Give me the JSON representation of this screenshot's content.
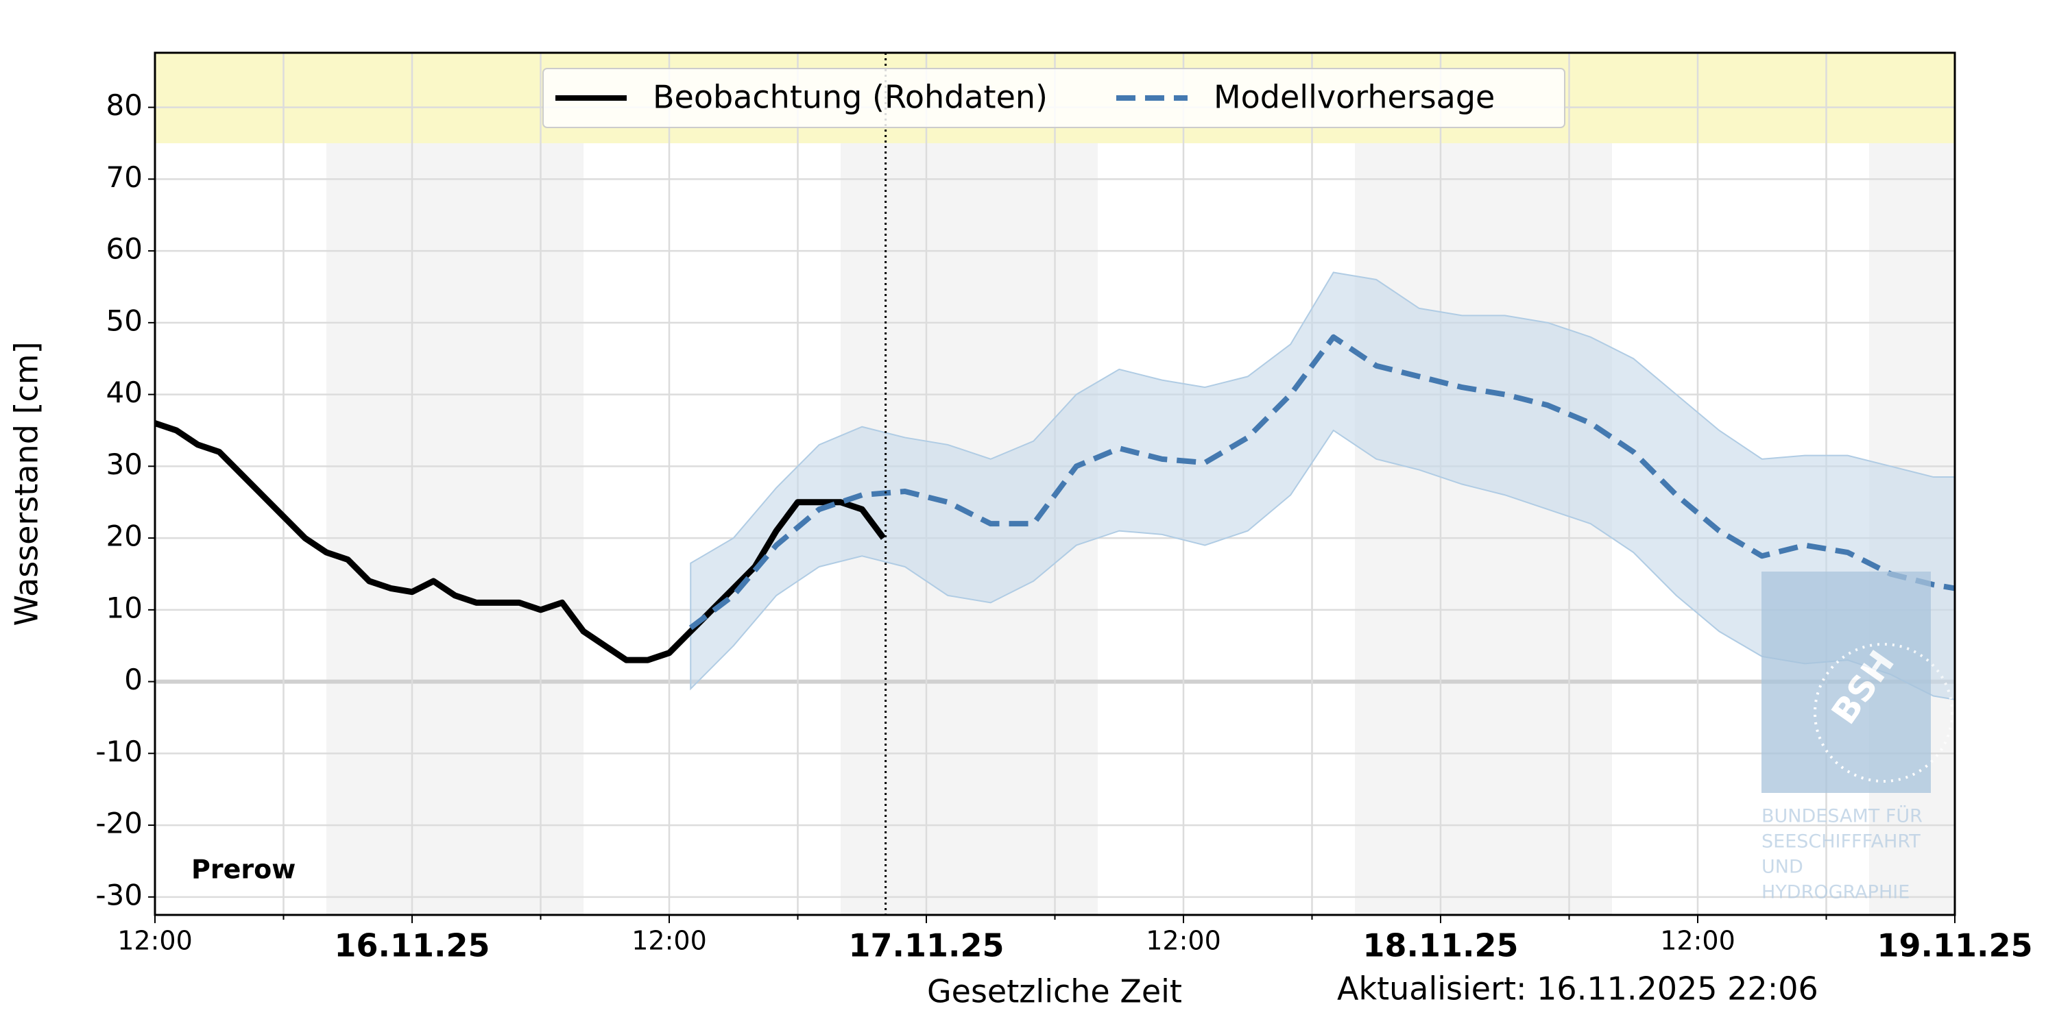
{
  "chart_data": {
    "type": "line",
    "station": "Prerow",
    "y_label": "Wasserstand [cm]",
    "x_label": "Gesetzliche Zeit",
    "updated": "Aktualisiert: 16.11.2025 22:06",
    "now_line": "2025-11-16T22:06",
    "xlim": [
      "2025-11-15T12:00",
      "2025-11-19T00:00"
    ],
    "xticks": [
      {
        "value": "2025-11-15T12:00",
        "label": "12:00"
      },
      {
        "value": "2025-11-16T00:00",
        "label": "16.11.25"
      },
      {
        "value": "2025-11-16T12:00",
        "label": "12:00"
      },
      {
        "value": "2025-11-17T00:00",
        "label": "17.11.25"
      },
      {
        "value": "2025-11-17T12:00",
        "label": "12:00"
      },
      {
        "value": "2025-11-18T00:00",
        "label": "18.11.25"
      },
      {
        "value": "2025-11-18T12:00",
        "label": "12:00"
      },
      {
        "value": "2025-11-19T00:00",
        "label": "19.11.25"
      }
    ],
    "xminorticks": [
      "2025-11-15T18:00",
      "2025-11-16T06:00",
      "2025-11-16T18:00",
      "2025-11-17T06:00",
      "2025-11-17T18:00",
      "2025-11-18T06:00",
      "2025-11-18T18:00"
    ],
    "ylim": [
      -32.5,
      87.6
    ],
    "yticks": [
      -30,
      -20,
      -10,
      0,
      10,
      20,
      30,
      40,
      50,
      60,
      70,
      80
    ],
    "grid": true,
    "legend": "upper center",
    "warn_band_from": 75,
    "warn_color": "#faf8c8",
    "night_color": "#f4f4f4",
    "night_periods": [
      [
        "2025-11-15T20:00",
        "2025-11-16T08:00"
      ],
      [
        "2025-11-16T20:00",
        "2025-11-17T08:00"
      ],
      [
        "2025-11-17T20:00",
        "2025-11-18T08:00"
      ],
      [
        "2025-11-18T20:00",
        "2025-11-19T08:00"
      ]
    ],
    "series": [
      {
        "name": "Beobachtung (Rohdaten)",
        "color": "#000000",
        "style": "solid",
        "x": [
          "2025-11-15T12:00",
          "2025-11-15T13:00",
          "2025-11-15T14:00",
          "2025-11-15T15:00",
          "2025-11-15T16:00",
          "2025-11-15T17:00",
          "2025-11-15T18:00",
          "2025-11-15T19:00",
          "2025-11-15T20:00",
          "2025-11-15T21:00",
          "2025-11-15T22:00",
          "2025-11-15T23:00",
          "2025-11-16T00:00",
          "2025-11-16T01:00",
          "2025-11-16T02:00",
          "2025-11-16T03:00",
          "2025-11-16T04:00",
          "2025-11-16T05:00",
          "2025-11-16T06:00",
          "2025-11-16T07:00",
          "2025-11-16T08:00",
          "2025-11-16T09:00",
          "2025-11-16T10:00",
          "2025-11-16T11:00",
          "2025-11-16T12:00",
          "2025-11-16T13:00",
          "2025-11-16T14:00",
          "2025-11-16T15:00",
          "2025-11-16T16:00",
          "2025-11-16T17:00",
          "2025-11-16T18:00",
          "2025-11-16T19:00",
          "2025-11-16T20:00",
          "2025-11-16T21:00",
          "2025-11-16T22:00"
        ],
        "values": [
          36,
          35,
          33,
          32,
          29,
          26,
          23,
          20,
          18,
          17,
          14,
          13,
          12.5,
          14,
          12,
          11,
          11,
          11,
          10,
          11,
          7,
          5,
          3,
          3,
          4,
          7,
          10,
          13,
          16,
          21,
          25,
          25,
          25,
          24,
          20
        ]
      },
      {
        "name": "Modellvorhersage",
        "color": "#4479b0",
        "style": "dashed",
        "x": [
          "2025-11-16T13:00",
          "2025-11-16T15:00",
          "2025-11-16T17:00",
          "2025-11-16T19:00",
          "2025-11-16T21:00",
          "2025-11-16T23:00",
          "2025-11-17T01:00",
          "2025-11-17T03:00",
          "2025-11-17T05:00",
          "2025-11-17T07:00",
          "2025-11-17T09:00",
          "2025-11-17T11:00",
          "2025-11-17T13:00",
          "2025-11-17T15:00",
          "2025-11-17T17:00",
          "2025-11-17T19:00",
          "2025-11-17T21:00",
          "2025-11-17T23:00",
          "2025-11-18T01:00",
          "2025-11-18T03:00",
          "2025-11-18T05:00",
          "2025-11-18T07:00",
          "2025-11-18T09:00",
          "2025-11-18T11:00",
          "2025-11-18T13:00",
          "2025-11-18T15:00",
          "2025-11-18T17:00",
          "2025-11-18T19:00",
          "2025-11-18T21:00",
          "2025-11-18T23:00",
          "2025-11-19T00:00"
        ],
        "values": [
          7.5,
          12,
          19,
          24,
          26,
          26.5,
          25,
          22,
          22,
          30,
          32.5,
          31,
          30.5,
          34,
          40,
          48,
          44,
          42.5,
          41,
          40,
          38.5,
          36,
          32,
          26,
          21,
          17.5,
          19,
          18,
          15,
          13.5,
          13
        ],
        "band_color": "#c6d9ea",
        "lower": [
          -1,
          5,
          12,
          16,
          17.5,
          16,
          12,
          11,
          14,
          19,
          21,
          20.5,
          19,
          21,
          26,
          35,
          31,
          29.5,
          27.5,
          26,
          24,
          22,
          18,
          12,
          7,
          3.5,
          2.5,
          3,
          1,
          -2,
          -2.5
        ],
        "upper": [
          16.5,
          20,
          27,
          33,
          35.5,
          34,
          33,
          31,
          33.5,
          40,
          43.5,
          42,
          41,
          42.5,
          47,
          57,
          56,
          52,
          51,
          51,
          50,
          48,
          45,
          40,
          35,
          31,
          31.5,
          31.5,
          30,
          28.5,
          28.5
        ]
      }
    ],
    "watermark": {
      "logo": "BSH",
      "lines": [
        "BUNDESAMT FÜR",
        "SEESCHIFFFAHRT",
        "UND",
        "HYDROGRAPHIE"
      ]
    }
  }
}
